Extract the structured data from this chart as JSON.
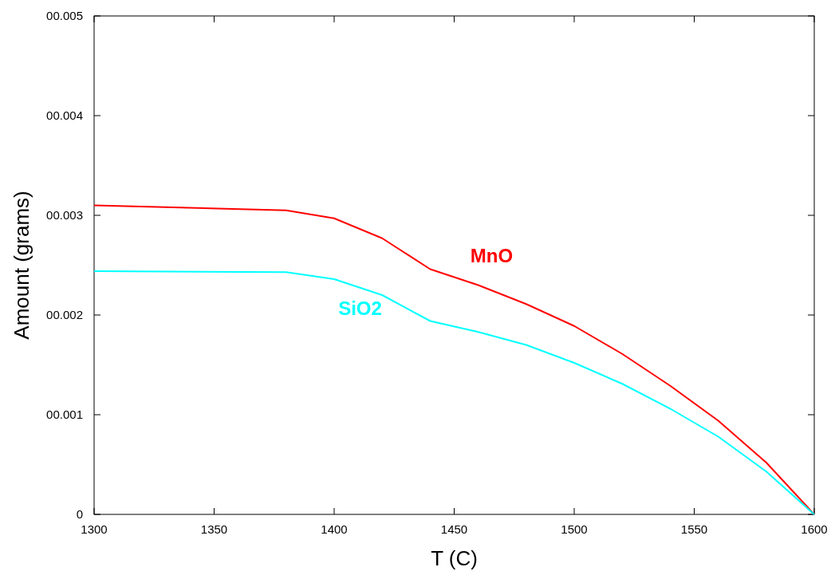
{
  "chart_data": {
    "type": "line",
    "xlabel": "T (C)",
    "ylabel": "Amount (grams)",
    "x": [
      1300,
      1380,
      1400,
      1420,
      1440,
      1460,
      1480,
      1500,
      1520,
      1540,
      1560,
      1580,
      1600
    ],
    "series": [
      {
        "name": "MnO",
        "color": "#ff0000",
        "values": [
          0.0031,
          0.00305,
          0.00297,
          0.00277,
          0.00246,
          0.0023,
          0.00211,
          0.00189,
          0.00161,
          0.00129,
          0.00094,
          0.00052,
          0
        ]
      },
      {
        "name": "SiO2",
        "color": "#00ffff",
        "values": [
          0.00244,
          0.00243,
          0.00236,
          0.0022,
          0.00194,
          0.00183,
          0.0017,
          0.00152,
          0.00131,
          0.00106,
          0.00078,
          0.00043,
          0
        ]
      }
    ],
    "xlim": [
      1300,
      1600
    ],
    "xticks": [
      1300,
      1350,
      1400,
      1450,
      1500,
      1550,
      1600
    ],
    "ylim": [
      0,
      0.005
    ],
    "yticks": [
      0,
      {
        "value": 0.001,
        "label": "00.001"
      },
      {
        "value": 0.002,
        "label": "00.002"
      },
      {
        "value": 0.003,
        "label": "00.003"
      },
      {
        "value": 0.004,
        "label": "00.004"
      },
      {
        "value": 0.005,
        "label": "00.005"
      }
    ],
    "grid": false,
    "marker": "none",
    "line_style": "solid"
  }
}
